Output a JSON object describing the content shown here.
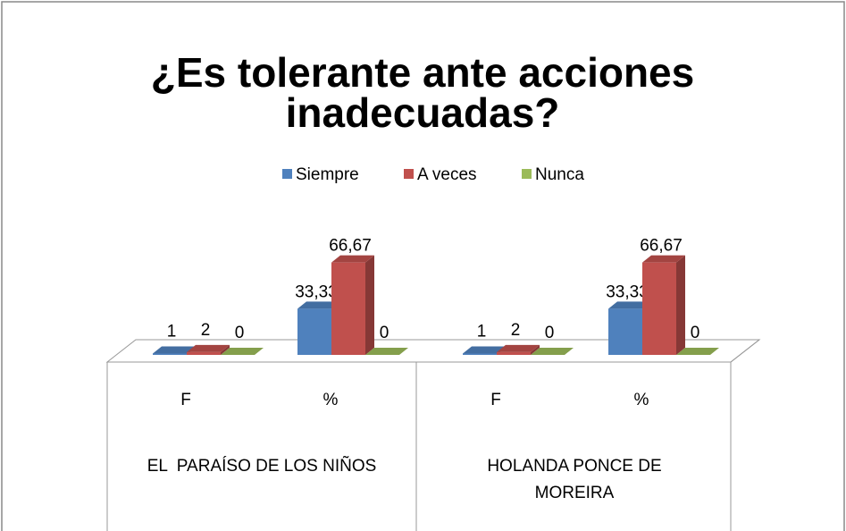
{
  "chart_data": {
    "type": "bar3d",
    "title": "¿Es tolerante ante acciones inadecuadas?",
    "categories": [
      "F",
      "%",
      "F",
      "%"
    ],
    "groups": [
      {
        "label": "EL  PARAÍSO DE LOS NIÑOS"
      },
      {
        "label": "HOLANDA PONCE DE MOREIRA"
      }
    ],
    "series": [
      {
        "name": "Siempre",
        "color": "#4f81bd",
        "values": [
          1,
          33.33,
          1,
          33.33
        ],
        "value_labels": [
          "1",
          "33,33",
          "1",
          "33,33"
        ]
      },
      {
        "name": "A veces",
        "color": "#c0504d",
        "values": [
          2,
          66.67,
          2,
          66.67
        ],
        "value_labels": [
          "2",
          "66,67",
          "2",
          "66,67"
        ]
      },
      {
        "name": "Nunca",
        "color": "#9bbb59",
        "values": [
          0,
          0,
          0,
          0
        ],
        "value_labels": [
          "0",
          "0",
          "0",
          "0"
        ]
      }
    ],
    "legend": "top"
  }
}
